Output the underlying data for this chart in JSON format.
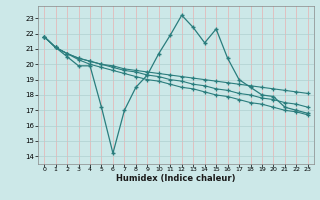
{
  "x": [
    0,
    1,
    2,
    3,
    4,
    5,
    6,
    7,
    8,
    9,
    10,
    11,
    12,
    13,
    14,
    15,
    16,
    17,
    18,
    19,
    20,
    21,
    22,
    23
  ],
  "line1": [
    21.8,
    21.1,
    20.5,
    19.9,
    19.9,
    17.2,
    14.2,
    17.0,
    18.5,
    19.3,
    20.7,
    21.9,
    23.2,
    22.4,
    21.4,
    22.3,
    20.4,
    19.0,
    18.5,
    18.0,
    17.9,
    17.2,
    17.0,
    16.8
  ],
  "line2": [
    21.8,
    21.1,
    20.7,
    20.3,
    20.0,
    19.8,
    19.6,
    19.4,
    19.2,
    19.0,
    18.9,
    18.7,
    18.5,
    18.4,
    18.2,
    18.0,
    17.9,
    17.7,
    17.5,
    17.4,
    17.2,
    17.0,
    16.9,
    16.7
  ],
  "line3": [
    21.8,
    21.1,
    20.7,
    20.4,
    20.2,
    20.0,
    19.8,
    19.6,
    19.5,
    19.3,
    19.2,
    19.0,
    18.9,
    18.7,
    18.6,
    18.4,
    18.3,
    18.1,
    18.0,
    17.8,
    17.7,
    17.5,
    17.4,
    17.2
  ],
  "line4": [
    21.8,
    21.1,
    20.7,
    20.4,
    20.2,
    20.0,
    19.9,
    19.7,
    19.6,
    19.5,
    19.4,
    19.3,
    19.2,
    19.1,
    19.0,
    18.9,
    18.8,
    18.7,
    18.6,
    18.5,
    18.4,
    18.3,
    18.2,
    18.1
  ],
  "color": "#2a7d7d",
  "bg_color": "#cce8e8",
  "grid_color": "#b0d8d8",
  "xlabel": "Humidex (Indice chaleur)",
  "ylim": [
    13.5,
    23.8
  ],
  "xlim": [
    -0.5,
    23.5
  ],
  "yticks": [
    14,
    15,
    16,
    17,
    18,
    19,
    20,
    21,
    22,
    23
  ],
  "xticks": [
    0,
    1,
    2,
    3,
    4,
    5,
    6,
    7,
    8,
    9,
    10,
    11,
    12,
    13,
    14,
    15,
    16,
    17,
    18,
    19,
    20,
    21,
    22,
    23
  ]
}
